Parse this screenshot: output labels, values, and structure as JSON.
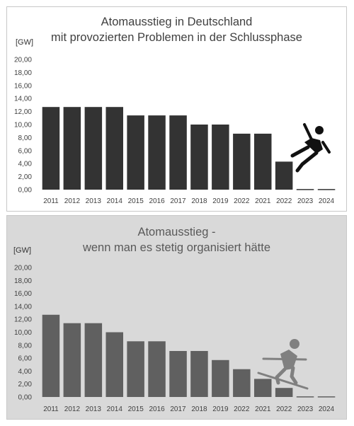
{
  "chart_data": [
    {
      "type": "bar",
      "title": "Atomausstieg in Deutschland\nmit provozierten Problemen in der Schlussphase",
      "title_lines": [
        "Atomausstieg in Deutschland",
        "mit provozierten Problemen in der Schlussphase"
      ],
      "ylabel": "[GW]",
      "ylim": [
        0,
        20
      ],
      "yticks": [
        "0,00",
        "2,00",
        "4,00",
        "6,00",
        "8,00",
        "10,00",
        "12,00",
        "14,00",
        "16,00",
        "18,00",
        "20,00"
      ],
      "categories": [
        "2011",
        "2012",
        "2013",
        "2014",
        "2015",
        "2016",
        "2017",
        "2018",
        "2019",
        "2022",
        "2021",
        "2022",
        "2023",
        "2024"
      ],
      "values": [
        12.7,
        12.7,
        12.7,
        12.7,
        11.4,
        11.4,
        11.4,
        10.0,
        10.0,
        8.6,
        8.6,
        4.3,
        0.1,
        0.1
      ],
      "bar_color": "#333333",
      "background": "#ffffff",
      "grid": false,
      "pictogram": "falling-person-icon"
    },
    {
      "type": "bar",
      "title": "Atomausstieg -\nwenn man es stetig organisiert hätte",
      "title_lines": [
        "Atomausstieg -",
        "wenn man es stetig organisiert hätte"
      ],
      "ylabel": "[GW]",
      "ylim": [
        0,
        20
      ],
      "yticks": [
        "0,00",
        "2,00",
        "4,00",
        "6,00",
        "8,00",
        "10,00",
        "12,00",
        "14,00",
        "16,00",
        "18,00",
        "20,00"
      ],
      "categories": [
        "2011",
        "2012",
        "2013",
        "2014",
        "2015",
        "2016",
        "2017",
        "2018",
        "2019",
        "2022",
        "2021",
        "2022",
        "2023",
        "2024"
      ],
      "values": [
        12.7,
        11.4,
        11.4,
        10.0,
        8.6,
        8.6,
        7.1,
        7.1,
        5.7,
        4.3,
        2.8,
        1.4,
        0.1,
        0.1
      ],
      "bar_color": "#606060",
      "background": "#d9d9d9",
      "grid": false,
      "pictogram": "skier-icon"
    }
  ]
}
